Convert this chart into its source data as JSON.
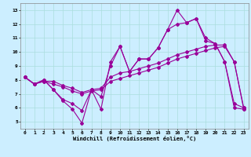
{
  "xlabel": "Windchill (Refroidissement éolien,°C)",
  "background_color": "#cceeff",
  "grid_color": "#aadddd",
  "line_color": "#990099",
  "xlim": [
    -0.5,
    23.5
  ],
  "ylim": [
    4.5,
    13.5
  ],
  "xticks": [
    0,
    1,
    2,
    3,
    4,
    5,
    6,
    7,
    8,
    9,
    10,
    11,
    12,
    13,
    14,
    15,
    16,
    17,
    18,
    19,
    20,
    21,
    22,
    23
  ],
  "yticks": [
    5,
    6,
    7,
    8,
    9,
    10,
    11,
    12,
    13
  ],
  "line1_y": [
    8.2,
    7.7,
    8.0,
    7.3,
    6.5,
    5.9,
    4.9,
    7.3,
    5.9,
    9.3,
    10.4,
    8.6,
    9.5,
    9.5,
    10.3,
    11.6,
    13.0,
    12.1,
    12.4,
    11.0,
    10.6,
    9.3,
    6.0,
    5.9
  ],
  "line2_y": [
    8.2,
    7.7,
    7.9,
    7.9,
    7.6,
    7.4,
    7.1,
    7.3,
    7.4,
    8.2,
    8.5,
    8.6,
    8.8,
    9.0,
    9.2,
    9.5,
    9.8,
    10.0,
    10.2,
    10.4,
    10.5,
    10.5,
    9.3,
    6.0
  ],
  "line3_y": [
    8.2,
    7.7,
    8.0,
    7.3,
    6.6,
    6.3,
    5.8,
    7.3,
    6.8,
    9.0,
    10.4,
    8.6,
    9.5,
    9.5,
    10.3,
    11.6,
    12.0,
    12.1,
    12.4,
    10.8,
    10.6,
    9.3,
    6.3,
    6.0
  ],
  "line4_y": [
    8.2,
    7.7,
    7.9,
    7.7,
    7.5,
    7.2,
    7.0,
    7.2,
    7.3,
    7.9,
    8.1,
    8.3,
    8.5,
    8.7,
    8.9,
    9.2,
    9.5,
    9.7,
    9.9,
    10.1,
    10.3,
    10.4,
    9.3,
    5.9
  ]
}
